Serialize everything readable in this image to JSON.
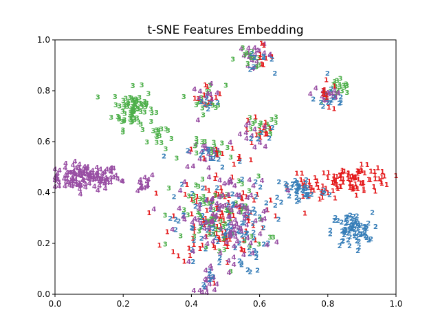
{
  "chart_data": {
    "type": "scatter",
    "title": "t-SNE Features Embedding",
    "xlabel": "",
    "ylabel": "",
    "xlim": [
      0.0,
      1.0
    ],
    "ylim": [
      0.0,
      1.0
    ],
    "xticks": [
      "0.0",
      "0.2",
      "0.4",
      "0.6",
      "0.8",
      "1.0"
    ],
    "yticks": [
      "0.0",
      "0.2",
      "0.4",
      "0.6",
      "0.8",
      "1.0"
    ],
    "grid": false,
    "legend": "none",
    "colors": {
      "1": "#e41a1c",
      "2": "#377eb8",
      "3": "#4daf4a",
      "4": "#984ea3"
    },
    "clusters": [
      {
        "label": "4",
        "cx": 0.09,
        "cy": 0.46,
        "sx": 0.05,
        "sy": 0.025,
        "n": 120
      },
      {
        "label": "4",
        "cx": 0.24,
        "cy": 0.44,
        "sx": 0.03,
        "sy": 0.02,
        "n": 16
      },
      {
        "label": "3",
        "cx": 0.23,
        "cy": 0.73,
        "sx": 0.03,
        "sy": 0.04,
        "n": 80
      },
      {
        "label": "3",
        "cx": 0.3,
        "cy": 0.62,
        "sx": 0.015,
        "sy": 0.03,
        "n": 14
      },
      {
        "label": "3",
        "cx": 0.45,
        "cy": 0.77,
        "sx": 0.025,
        "sy": 0.03,
        "n": 16
      },
      {
        "label": "1",
        "cx": 0.45,
        "cy": 0.78,
        "sx": 0.02,
        "sy": 0.025,
        "n": 12
      },
      {
        "label": "4",
        "cx": 0.44,
        "cy": 0.77,
        "sx": 0.02,
        "sy": 0.025,
        "n": 10
      },
      {
        "label": "2",
        "cx": 0.45,
        "cy": 0.76,
        "sx": 0.02,
        "sy": 0.025,
        "n": 6
      },
      {
        "label": "4",
        "cx": 0.59,
        "cy": 0.94,
        "sx": 0.025,
        "sy": 0.02,
        "n": 20
      },
      {
        "label": "3",
        "cx": 0.57,
        "cy": 0.93,
        "sx": 0.03,
        "sy": 0.02,
        "n": 12
      },
      {
        "label": "1",
        "cx": 0.6,
        "cy": 0.94,
        "sx": 0.02,
        "sy": 0.02,
        "n": 8
      },
      {
        "label": "2",
        "cx": 0.6,
        "cy": 0.92,
        "sx": 0.02,
        "sy": 0.02,
        "n": 8
      },
      {
        "label": "3",
        "cx": 0.83,
        "cy": 0.8,
        "sx": 0.025,
        "sy": 0.025,
        "n": 20
      },
      {
        "label": "4",
        "cx": 0.8,
        "cy": 0.79,
        "sx": 0.025,
        "sy": 0.025,
        "n": 16
      },
      {
        "label": "2",
        "cx": 0.81,
        "cy": 0.77,
        "sx": 0.025,
        "sy": 0.03,
        "n": 14
      },
      {
        "label": "1",
        "cx": 0.8,
        "cy": 0.78,
        "sx": 0.02,
        "sy": 0.03,
        "n": 10
      },
      {
        "label": "3",
        "cx": 0.6,
        "cy": 0.65,
        "sx": 0.03,
        "sy": 0.03,
        "n": 16
      },
      {
        "label": "1",
        "cx": 0.6,
        "cy": 0.64,
        "sx": 0.025,
        "sy": 0.03,
        "n": 14
      },
      {
        "label": "4",
        "cx": 0.58,
        "cy": 0.62,
        "sx": 0.025,
        "sy": 0.025,
        "n": 12
      },
      {
        "label": "2",
        "cx": 0.6,
        "cy": 0.62,
        "sx": 0.025,
        "sy": 0.025,
        "n": 6
      },
      {
        "label": "1",
        "cx": 0.88,
        "cy": 0.45,
        "sx": 0.06,
        "sy": 0.025,
        "n": 90
      },
      {
        "label": "1",
        "cx": 0.75,
        "cy": 0.42,
        "sx": 0.03,
        "sy": 0.025,
        "n": 20
      },
      {
        "label": "2",
        "cx": 0.87,
        "cy": 0.25,
        "sx": 0.03,
        "sy": 0.035,
        "n": 70
      },
      {
        "label": "2",
        "cx": 0.72,
        "cy": 0.41,
        "sx": 0.04,
        "sy": 0.03,
        "n": 40
      },
      {
        "label": "1",
        "cx": 0.48,
        "cy": 0.3,
        "sx": 0.07,
        "sy": 0.09,
        "n": 110
      },
      {
        "label": "2",
        "cx": 0.49,
        "cy": 0.26,
        "sx": 0.07,
        "sy": 0.09,
        "n": 100
      },
      {
        "label": "3",
        "cx": 0.48,
        "cy": 0.3,
        "sx": 0.07,
        "sy": 0.08,
        "n": 70
      },
      {
        "label": "4",
        "cx": 0.5,
        "cy": 0.3,
        "sx": 0.07,
        "sy": 0.09,
        "n": 110
      },
      {
        "label": "4",
        "cx": 0.46,
        "cy": 0.56,
        "sx": 0.04,
        "sy": 0.02,
        "n": 16
      },
      {
        "label": "3",
        "cx": 0.47,
        "cy": 0.57,
        "sx": 0.04,
        "sy": 0.02,
        "n": 16
      },
      {
        "label": "2",
        "cx": 0.47,
        "cy": 0.54,
        "sx": 0.04,
        "sy": 0.02,
        "n": 12
      },
      {
        "label": "1",
        "cx": 0.47,
        "cy": 0.55,
        "sx": 0.04,
        "sy": 0.02,
        "n": 10
      },
      {
        "label": "4",
        "cx": 0.45,
        "cy": 0.05,
        "sx": 0.02,
        "sy": 0.02,
        "n": 12
      },
      {
        "label": "2",
        "cx": 0.43,
        "cy": 0.06,
        "sx": 0.02,
        "sy": 0.02,
        "n": 6
      }
    ]
  }
}
